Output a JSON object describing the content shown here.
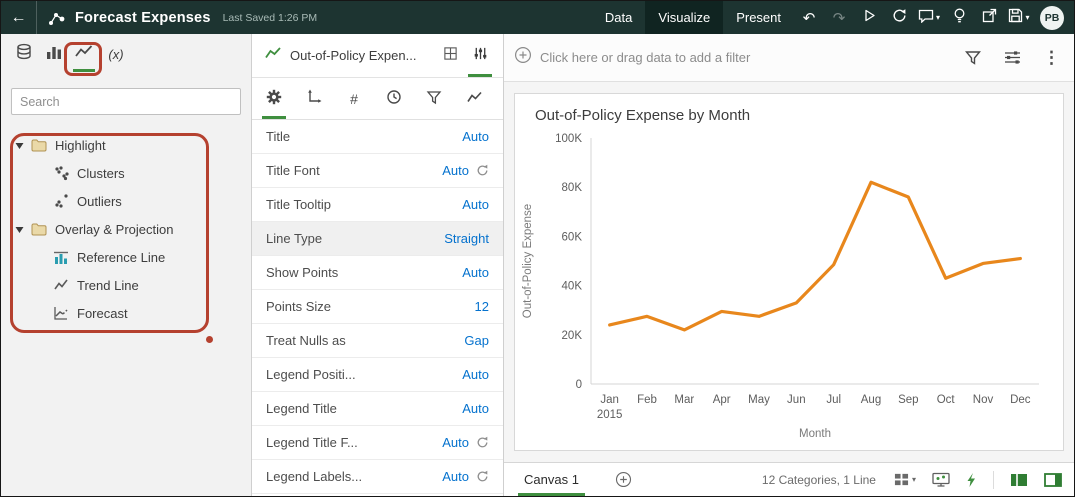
{
  "colors": {
    "topbar_bg": "#1d3431",
    "topbar_active": "#102421",
    "accent_green": "#3f8f3f",
    "annotation_red": "#b5412f",
    "value_blue": "#0572ce",
    "line_orange": "#e8871c"
  },
  "icons": {
    "undo": "↶",
    "redo": "↷",
    "caret_down": "▾",
    "kebab": "⋮",
    "fx": "(x)"
  },
  "topbar": {
    "title": "Forecast Expenses",
    "last_saved": "Last Saved 1:26 PM",
    "nav": [
      {
        "label": "Data"
      },
      {
        "label": "Visualize"
      },
      {
        "label": "Present"
      }
    ],
    "avatar": "PB"
  },
  "left_panel": {
    "search_placeholder": "Search",
    "tree": [
      {
        "label": "Highlight"
      },
      {
        "label": "Clusters"
      },
      {
        "label": "Outliers"
      },
      {
        "label": "Overlay & Projection"
      },
      {
        "label": "Reference Line"
      },
      {
        "label": "Trend Line"
      },
      {
        "label": "Forecast"
      }
    ]
  },
  "properties": {
    "viz_title": "Out-of-Policy Expen...",
    "rows": [
      {
        "label": "Title",
        "value": "Auto"
      },
      {
        "label": "Title Font",
        "value": "Auto"
      },
      {
        "label": "Title Tooltip",
        "value": "Auto"
      },
      {
        "label": "Line Type",
        "value": "Straight"
      },
      {
        "label": "Show Points",
        "value": "Auto"
      },
      {
        "label": "Points Size",
        "value": "12"
      },
      {
        "label": "Treat Nulls as",
        "value": "Gap"
      },
      {
        "label": "Legend Positi...",
        "value": "Auto"
      },
      {
        "label": "Legend Title",
        "value": "Auto"
      },
      {
        "label": "Legend Title F...",
        "value": "Auto"
      },
      {
        "label": "Legend Labels...",
        "value": "Auto"
      }
    ]
  },
  "filter_bar": {
    "prompt": "Click here or drag data to add a filter"
  },
  "chart_data": {
    "type": "line",
    "title": "Out-of-Policy Expense by Month",
    "xlabel": "Month",
    "ylabel": "Out-of-Policy Expense",
    "categories": [
      "Jan",
      "Feb",
      "Mar",
      "Apr",
      "May",
      "Jun",
      "Jul",
      "Aug",
      "Sep",
      "Oct",
      "Nov",
      "Dec"
    ],
    "x_sublabel": {
      "index": 0,
      "label": "2015"
    },
    "values": [
      24000,
      27500,
      22000,
      29500,
      27500,
      33000,
      48500,
      82000,
      76000,
      43000,
      49000,
      51000
    ],
    "ylim": [
      0,
      100000
    ],
    "yticks": [
      {
        "value": 0,
        "label": "0"
      },
      {
        "value": 20000,
        "label": "20K"
      },
      {
        "value": 40000,
        "label": "40K"
      },
      {
        "value": 60000,
        "label": "60K"
      },
      {
        "value": 80000,
        "label": "80K"
      },
      {
        "value": 100000,
        "label": "100K"
      }
    ],
    "line_color": "#e8871c",
    "grid": false,
    "legend": "none"
  },
  "bottom_bar": {
    "canvas_tab": "Canvas 1",
    "status": "12 Categories, 1 Line"
  }
}
